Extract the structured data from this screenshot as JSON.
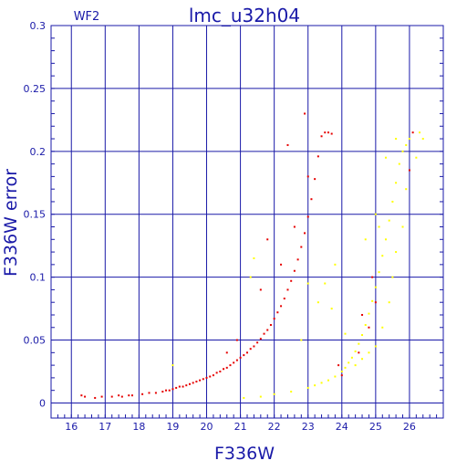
{
  "chart_data": {
    "type": "scatter",
    "title": "lmc_u32h04",
    "chip_label": "WF2",
    "xlabel": "F336W",
    "ylabel": "F336W error",
    "xlim": [
      15.4,
      27
    ],
    "ylim": [
      -0.012,
      0.3
    ],
    "xticks": [
      16,
      17,
      18,
      19,
      20,
      21,
      22,
      23,
      24,
      25,
      26
    ],
    "yticks": [
      0,
      0.05,
      0.1,
      0.15,
      0.2,
      0.25,
      0.3
    ],
    "ytick_labels": [
      "0",
      "0.05",
      "0.1",
      "0.15",
      "0.2",
      "0.25",
      "0.3"
    ],
    "grid": true,
    "colors": {
      "frame": "#1a1aa8",
      "primary": "#e60000",
      "secondary": "#ffff00",
      "background": "#ffffff"
    },
    "series": [
      {
        "color": "#e60000",
        "points": [
          [
            16.3,
            0.006
          ],
          [
            16.4,
            0.005
          ],
          [
            16.7,
            0.004
          ],
          [
            16.9,
            0.005
          ],
          [
            17.2,
            0.005
          ],
          [
            17.4,
            0.006
          ],
          [
            17.5,
            0.005
          ],
          [
            17.7,
            0.006
          ],
          [
            17.8,
            0.006
          ],
          [
            18.1,
            0.007
          ],
          [
            18.3,
            0.008
          ],
          [
            18.5,
            0.008
          ],
          [
            18.7,
            0.009
          ],
          [
            18.8,
            0.01
          ],
          [
            18.9,
            0.01
          ],
          [
            19.0,
            0.011
          ],
          [
            19.1,
            0.012
          ],
          [
            19.2,
            0.013
          ],
          [
            19.3,
            0.013
          ],
          [
            19.4,
            0.014
          ],
          [
            19.5,
            0.015
          ],
          [
            19.6,
            0.016
          ],
          [
            19.7,
            0.017
          ],
          [
            19.8,
            0.018
          ],
          [
            19.9,
            0.019
          ],
          [
            20.0,
            0.02
          ],
          [
            20.1,
            0.021
          ],
          [
            20.2,
            0.022
          ],
          [
            20.3,
            0.024
          ],
          [
            20.4,
            0.025
          ],
          [
            20.5,
            0.027
          ],
          [
            20.6,
            0.028
          ],
          [
            20.7,
            0.03
          ],
          [
            20.8,
            0.032
          ],
          [
            20.9,
            0.034
          ],
          [
            21.0,
            0.036
          ],
          [
            21.1,
            0.038
          ],
          [
            21.2,
            0.04
          ],
          [
            21.3,
            0.043
          ],
          [
            21.4,
            0.045
          ],
          [
            21.5,
            0.048
          ],
          [
            21.6,
            0.051
          ],
          [
            21.7,
            0.055
          ],
          [
            21.8,
            0.058
          ],
          [
            21.9,
            0.062
          ],
          [
            22.0,
            0.067
          ],
          [
            22.1,
            0.072
          ],
          [
            22.2,
            0.077
          ],
          [
            22.3,
            0.083
          ],
          [
            22.4,
            0.09
          ],
          [
            22.5,
            0.097
          ],
          [
            22.6,
            0.105
          ],
          [
            22.7,
            0.114
          ],
          [
            22.8,
            0.124
          ],
          [
            22.9,
            0.135
          ],
          [
            23.0,
            0.148
          ],
          [
            23.1,
            0.162
          ],
          [
            23.2,
            0.178
          ],
          [
            23.3,
            0.196
          ],
          [
            23.4,
            0.212
          ],
          [
            23.5,
            0.215
          ],
          [
            23.6,
            0.215
          ],
          [
            23.7,
            0.214
          ],
          [
            21.8,
            0.13
          ],
          [
            22.4,
            0.205
          ],
          [
            22.9,
            0.23
          ],
          [
            23.0,
            0.18
          ],
          [
            22.6,
            0.14
          ],
          [
            21.6,
            0.09
          ],
          [
            22.2,
            0.11
          ],
          [
            24.6,
            0.07
          ],
          [
            24.8,
            0.06
          ],
          [
            24.9,
            0.1
          ],
          [
            25.0,
            0.08
          ],
          [
            24.5,
            0.04
          ],
          [
            24.0,
            0.022
          ],
          [
            23.9,
            0.03
          ],
          [
            26.1,
            0.215
          ],
          [
            26.0,
            0.185
          ],
          [
            20.9,
            0.05
          ],
          [
            20.6,
            0.04
          ]
        ]
      },
      {
        "color": "#ffff00",
        "points": [
          [
            19.0,
            0.03
          ],
          [
            21.1,
            0.004
          ],
          [
            21.6,
            0.005
          ],
          [
            22.0,
            0.007
          ],
          [
            22.5,
            0.009
          ],
          [
            23.0,
            0.012
          ],
          [
            23.2,
            0.014
          ],
          [
            23.4,
            0.016
          ],
          [
            23.6,
            0.018
          ],
          [
            23.8,
            0.021
          ],
          [
            24.0,
            0.025
          ],
          [
            24.1,
            0.028
          ],
          [
            24.2,
            0.032
          ],
          [
            24.3,
            0.036
          ],
          [
            24.4,
            0.041
          ],
          [
            24.5,
            0.047
          ],
          [
            24.6,
            0.054
          ],
          [
            24.7,
            0.062
          ],
          [
            24.8,
            0.071
          ],
          [
            24.9,
            0.081
          ],
          [
            25.0,
            0.092
          ],
          [
            25.1,
            0.104
          ],
          [
            25.2,
            0.117
          ],
          [
            25.3,
            0.13
          ],
          [
            25.4,
            0.145
          ],
          [
            25.5,
            0.16
          ],
          [
            25.6,
            0.175
          ],
          [
            25.7,
            0.19
          ],
          [
            25.8,
            0.2
          ],
          [
            25.9,
            0.205
          ],
          [
            26.0,
            0.21
          ],
          [
            26.3,
            0.215
          ],
          [
            25.3,
            0.195
          ],
          [
            25.6,
            0.21
          ],
          [
            25.9,
            0.17
          ],
          [
            25.8,
            0.14
          ],
          [
            25.6,
            0.12
          ],
          [
            25.5,
            0.1
          ],
          [
            25.4,
            0.08
          ],
          [
            25.2,
            0.06
          ],
          [
            25.0,
            0.045
          ],
          [
            24.8,
            0.04
          ],
          [
            24.4,
            0.03
          ],
          [
            24.1,
            0.055
          ],
          [
            23.7,
            0.075
          ],
          [
            23.8,
            0.11
          ],
          [
            23.5,
            0.095
          ],
          [
            23.3,
            0.08
          ],
          [
            21.4,
            0.115
          ],
          [
            23.0,
            0.095
          ],
          [
            22.8,
            0.05
          ],
          [
            25.0,
            0.15
          ],
          [
            25.1,
            0.14
          ],
          [
            24.6,
            0.035
          ],
          [
            24.7,
            0.13
          ],
          [
            26.4,
            0.21
          ],
          [
            26.2,
            0.195
          ],
          [
            21.3,
            0.1
          ]
        ]
      }
    ]
  }
}
